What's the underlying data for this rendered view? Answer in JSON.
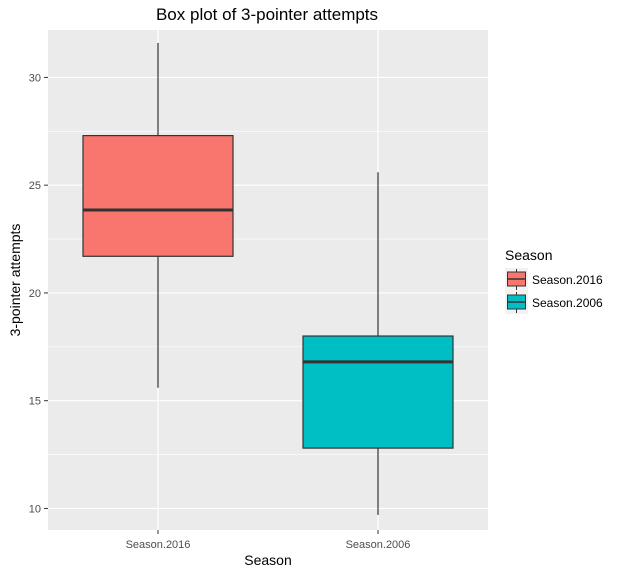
{
  "chart_data": {
    "type": "box",
    "title": "Box plot of 3-pointer attempts",
    "xlabel": "Season",
    "ylabel": "3-pointer attempts",
    "categories": [
      "Season.2016",
      "Season.2006"
    ],
    "ylim": [
      9.0,
      32.2
    ],
    "yticks": [
      10,
      15,
      20,
      25,
      30
    ],
    "grid": true,
    "legend": {
      "title": "Season",
      "position": "right",
      "entries": [
        "Season.2016",
        "Season.2006"
      ]
    },
    "series": [
      {
        "category": "Season.2016",
        "color": "#F8766D",
        "whisker_low": 15.6,
        "q1": 21.7,
        "median": 23.85,
        "q3": 27.3,
        "whisker_high": 31.6
      },
      {
        "category": "Season.2006",
        "color": "#00BFC4",
        "whisker_low": 9.7,
        "q1": 12.8,
        "median": 16.8,
        "q3": 18.0,
        "whisker_high": 25.6
      }
    ],
    "colors": {
      "panel": "#EBEBEB",
      "grid": "#FFFFFF",
      "box_border": "#333333"
    }
  }
}
